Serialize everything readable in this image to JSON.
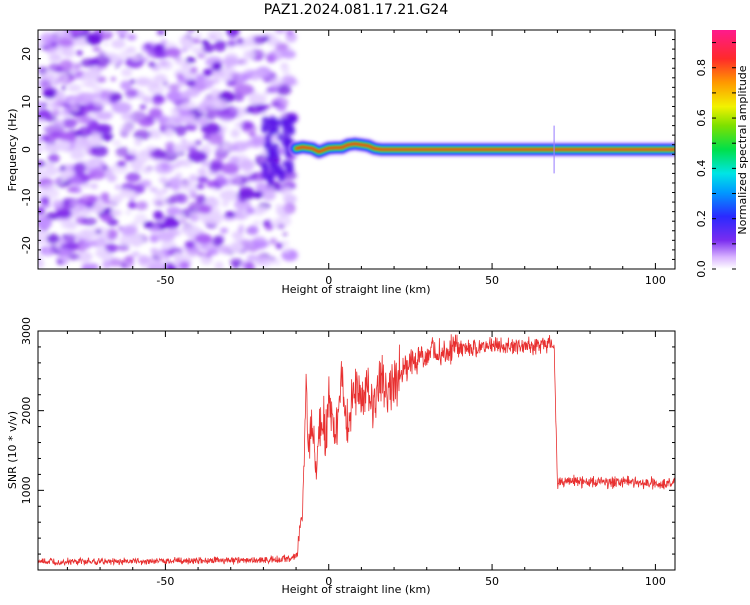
{
  "title": "PAZ1.2024.081.17.21.G24",
  "colors": {
    "trace": "#e83030",
    "spectrogram_noise": "#9a40f0",
    "spectrogram_core": "#e81a1a"
  },
  "chart_data": [
    {
      "type": "heatmap",
      "xlabel": "Height of straight line (km)",
      "ylabel": "Frequency (Hz)",
      "xlim": [
        -89,
        106
      ],
      "ylim": [
        -25,
        25
      ],
      "xticks": [
        -50,
        0,
        50,
        100
      ],
      "yticks": [
        -20,
        -10,
        0,
        10,
        20
      ],
      "noise_region_x": [
        -89,
        -11
      ],
      "signal_line": {
        "x": [
          -10,
          -8,
          -5,
          -3,
          0,
          2,
          4,
          6,
          8,
          10,
          12,
          14,
          16,
          18,
          20,
          30,
          50,
          68,
          70,
          90,
          106
        ],
        "freq_hz": [
          0.2,
          0.5,
          0.2,
          -0.5,
          0.3,
          0.4,
          0.4,
          1.0,
          1.2,
          1.0,
          0.8,
          0.2,
          0.0,
          0.0,
          0.0,
          0.0,
          0.0,
          0.0,
          0.0,
          0.0,
          0.0
        ]
      },
      "colorbar": {
        "label": "Normalized spectral amplitude",
        "range": [
          0,
          0.95
        ],
        "ticks": [
          0.0,
          0.2,
          0.4,
          0.6,
          0.8
        ]
      }
    },
    {
      "type": "line",
      "xlabel": "Height of straight line (km)",
      "ylabel": "SNR (10 * v/v)",
      "xlim": [
        -89,
        106
      ],
      "ylim": [
        0,
        3000
      ],
      "xticks": [
        -50,
        0,
        50,
        100
      ],
      "yticks": [
        1000,
        2000,
        3000
      ],
      "series": [
        {
          "x": [
            -89,
            -60,
            -30,
            -15,
            -10,
            -8,
            -7,
            -6,
            -5,
            -4,
            -3,
            -2,
            -1,
            0,
            2,
            4,
            6,
            8,
            10,
            12,
            14,
            16,
            18,
            20,
            25,
            30,
            35,
            40,
            45,
            50,
            55,
            60,
            65,
            68,
            69,
            70,
            75,
            80,
            90,
            100,
            106
          ],
          "y": [
            100,
            110,
            120,
            130,
            170,
            700,
            2200,
            1500,
            1900,
            1300,
            1700,
            2000,
            1600,
            2100,
            1800,
            2300,
            1700,
            2350,
            2100,
            2300,
            2100,
            2350,
            2250,
            2400,
            2600,
            2700,
            2750,
            2780,
            2780,
            2800,
            2800,
            2820,
            2830,
            2840,
            2820,
            1100,
            1120,
            1100,
            1110,
            1090,
            1100
          ]
        }
      ]
    }
  ]
}
